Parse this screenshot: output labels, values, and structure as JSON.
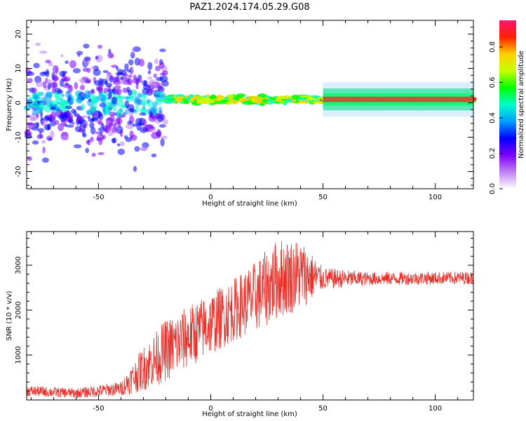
{
  "title": "PAZ1.2024.174.05.29.G08",
  "chart_data": [
    {
      "type": "heatmap",
      "xlabel": "Height of straight line (km)",
      "ylabel": "Frequency (Hz)",
      "xlim": [
        -82,
        117
      ],
      "ylim": [
        -25,
        24
      ],
      "xticks": [
        -50,
        0,
        50,
        100
      ],
      "yticks": [
        -20,
        -10,
        0,
        10,
        20
      ],
      "colorbar": {
        "label": "Normalized spectral amplitude",
        "range": [
          0.0,
          0.95
        ],
        "ticks": [
          0.0,
          0.2,
          0.4,
          0.6,
          0.8
        ],
        "colors": [
          "#ffffff",
          "#8a2be2",
          "#0000ff",
          "#00ffff",
          "#00ff00",
          "#ffff00",
          "#ff0000",
          "#ff1493"
        ]
      },
      "description_regions": [
        {
          "x_range": [
            -82,
            -20
          ],
          "freq_center": 0,
          "freq_spread": 24,
          "amplitude": 0.25
        },
        {
          "x_range": [
            -20,
            50
          ],
          "freq_center": 1,
          "freq_spread": 2,
          "amplitude": 0.7
        },
        {
          "x_range": [
            50,
            117
          ],
          "freq_center": 1,
          "freq_spread": 1.5,
          "amplitude": 0.85
        }
      ]
    },
    {
      "type": "line",
      "xlabel": "Height of straight line (km)",
      "ylabel": "SNR (10 * v/v)",
      "xlim": [
        -82,
        117
      ],
      "ylim": [
        0,
        3750
      ],
      "xticks": [
        -50,
        0,
        50,
        100
      ],
      "yticks": [
        1000,
        2000,
        3000
      ],
      "series": [
        {
          "color": "#e8302a",
          "envelope": [
            {
              "x": -82,
              "mean": 200,
              "spread": 120
            },
            {
              "x": -60,
              "mean": 150,
              "spread": 110
            },
            {
              "x": -40,
              "mean": 250,
              "spread": 160
            },
            {
              "x": -30,
              "mean": 700,
              "spread": 500
            },
            {
              "x": -20,
              "mean": 1100,
              "spread": 700
            },
            {
              "x": -10,
              "mean": 1400,
              "spread": 700
            },
            {
              "x": 0,
              "mean": 1700,
              "spread": 700
            },
            {
              "x": 10,
              "mean": 2000,
              "spread": 700
            },
            {
              "x": 20,
              "mean": 2300,
              "spread": 800
            },
            {
              "x": 30,
              "mean": 2700,
              "spread": 900
            },
            {
              "x": 40,
              "mean": 2800,
              "spread": 800
            },
            {
              "x": 50,
              "mean": 2700,
              "spread": 250
            },
            {
              "x": 70,
              "mean": 2700,
              "spread": 150
            },
            {
              "x": 117,
              "mean": 2720,
              "spread": 140
            }
          ]
        }
      ]
    }
  ]
}
